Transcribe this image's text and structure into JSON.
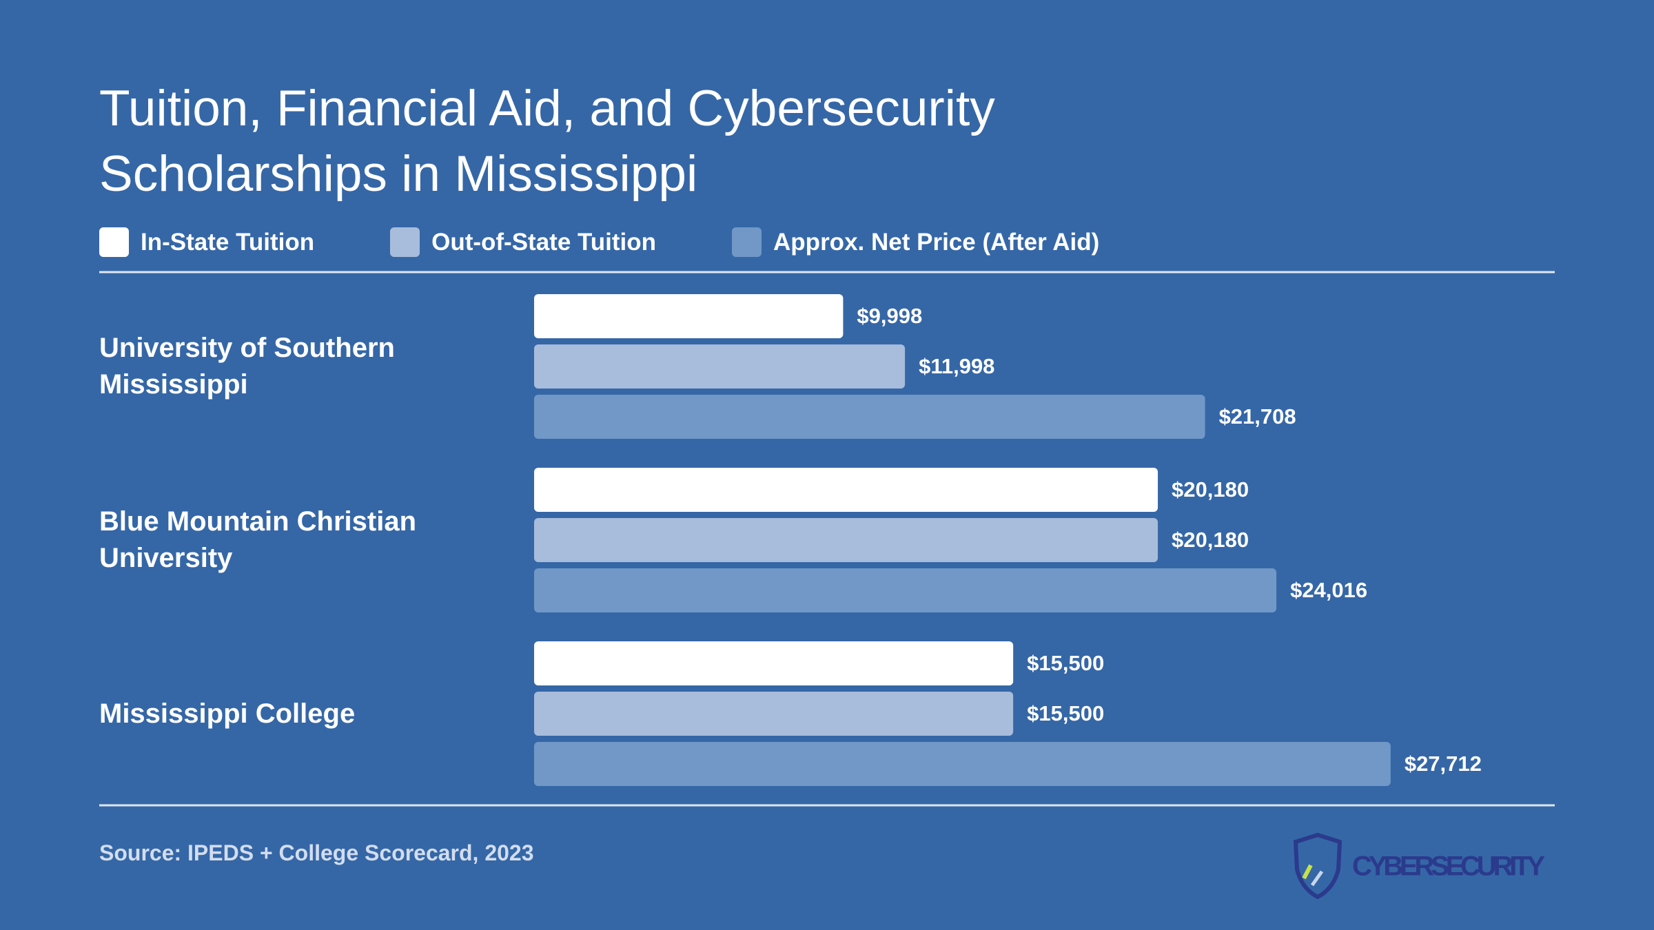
{
  "chart_data": {
    "type": "bar",
    "orientation": "horizontal",
    "title": "Tuition, Financial Aid, and Cybersecurity Scholarships in Mississippi",
    "categories": [
      "University of Southern Mississippi",
      "Blue Mountain Christian University",
      "Mississippi College"
    ],
    "series": [
      {
        "name": "In-State Tuition",
        "color": "#ffffff",
        "values": [
          9998,
          20180,
          15500
        ],
        "value_labels": [
          "$9,998",
          "$20,180",
          "$15,500"
        ]
      },
      {
        "name": "Out-of-State Tuition",
        "color": "#a8bcdb",
        "values": [
          11998,
          20180,
          15500
        ],
        "value_labels": [
          "$11,998",
          "$20,180",
          "$15,500"
        ]
      },
      {
        "name": "Approx. Net Price (After Aid)",
        "color": "#7198c6",
        "values": [
          21708,
          24016,
          27712
        ],
        "value_labels": [
          "$21,708",
          "$24,016",
          "$27,712"
        ]
      }
    ],
    "xlim": [
      0,
      33000
    ],
    "source": "Source: IPEDS + College Scorecard, 2023"
  },
  "logo": {
    "text": "CYBERSECURITY"
  }
}
